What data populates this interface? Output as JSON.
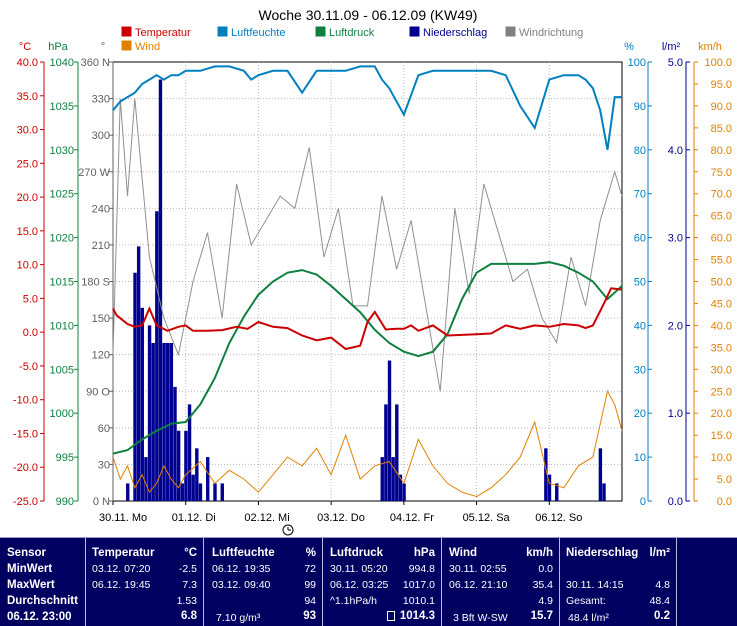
{
  "chart_data": {
    "type": "line",
    "title": "Woche 30.11.09 - 06.12.09 (KW49)",
    "legend": [
      {
        "name": "Temperatur",
        "color": "#cc0000"
      },
      {
        "name": "Luftfeuchte",
        "color": "#0080c0"
      },
      {
        "name": "Luftdruck",
        "color": "#108040"
      },
      {
        "name": "Niederschlag",
        "color": "#000090"
      },
      {
        "name": "Windrichtung",
        "color": "#808080"
      },
      {
        "name": "Wind",
        "color": "#e08000"
      }
    ],
    "x_tick_labels": [
      "30.11.  Mo",
      "01.12.  Di",
      "02.12.  Mi",
      "03.12.  Do",
      "04.12.  Fr",
      "05.12.  Sa",
      "06.12.  So"
    ],
    "axes": {
      "temp": {
        "unit": "°C",
        "color": "#cc0000",
        "ylim": [
          -25,
          40
        ],
        "ticks": [
          "40.0",
          "35.0",
          "30.0",
          "25.0",
          "20.0",
          "15.0",
          "10.0",
          "5.0",
          "0.0",
          "-5.0",
          "-10.0",
          "-15.0",
          "-20.0",
          "-25.0"
        ]
      },
      "pressure": {
        "unit": "hPa",
        "color": "#108040",
        "ylim": [
          990,
          1040
        ],
        "ticks": [
          "1040",
          "1035",
          "1030",
          "1025",
          "1020",
          "1015",
          "1010",
          "1005",
          "1000",
          "995",
          "990"
        ]
      },
      "winddir": {
        "unit": "°",
        "color": "#606060",
        "ylim": [
          0,
          360
        ],
        "ticks": [
          "360 N",
          "330",
          "300",
          "270 W",
          "240",
          "210",
          "180 S",
          "150",
          "120",
          "90 O",
          "60",
          "30",
          "0 N"
        ]
      },
      "humidity": {
        "unit": "%",
        "color": "#0080c0",
        "ylim": [
          0,
          100
        ],
        "ticks": [
          "100",
          "90",
          "80",
          "70",
          "60",
          "50",
          "40",
          "30",
          "20",
          "10",
          "0"
        ]
      },
      "rain": {
        "unit": "l/m²",
        "color": "#000090",
        "ylim": [
          0,
          5
        ],
        "ticks": [
          "5.0",
          "4.0",
          "3.0",
          "2.0",
          "1.0",
          "0.0"
        ]
      },
      "wind": {
        "unit": "km/h",
        "color": "#e08000",
        "ylim": [
          0,
          100
        ],
        "ticks": [
          "100.0",
          "95.0",
          "90.0",
          "85.0",
          "80.0",
          "75.0",
          "70.0",
          "65.0",
          "60.0",
          "55.0",
          "50.0",
          "45.0",
          "40.0",
          "35.0",
          "30.0",
          "25.0",
          "20.0",
          "15.0",
          "10.0",
          "5.0",
          "0.0"
        ]
      }
    },
    "series": [
      {
        "name": "Temperatur",
        "x": [
          0,
          0.05,
          0.2,
          0.3,
          0.4,
          0.5,
          0.6,
          0.75,
          0.9,
          1.0,
          1.1,
          1.3,
          1.5,
          1.7,
          1.85,
          2.0,
          2.2,
          2.4,
          2.6,
          2.8,
          3.0,
          3.2,
          3.4,
          3.5,
          3.6,
          3.75,
          3.9,
          4.0,
          4.1,
          4.2,
          4.4,
          4.6,
          4.8,
          5.0,
          5.2,
          5.4,
          5.6,
          5.8,
          6.0,
          6.2,
          6.4,
          6.5,
          6.6,
          6.75,
          6.85,
          7.0
        ],
        "y": [
          3.5,
          2.5,
          1.2,
          0.8,
          1.0,
          3.5,
          1.0,
          0.2,
          0.8,
          1.0,
          0.2,
          0.2,
          0.3,
          0.8,
          0.5,
          1.5,
          0.8,
          0.6,
          -0.5,
          -1.2,
          -0.8,
          -2.5,
          -2.0,
          1.5,
          3.0,
          0.4,
          0.5,
          0.5,
          1.0,
          0.2,
          1.0,
          -0.5,
          -0.4,
          -0.3,
          -0.2,
          1.0,
          0.5,
          1.0,
          0.8,
          1.2,
          1.0,
          0.6,
          1.0,
          4.2,
          6.5,
          6.3
        ]
      },
      {
        "name": "Luftfeuchte",
        "x": [
          0,
          0.1,
          0.2,
          0.3,
          0.4,
          0.5,
          0.6,
          0.7,
          0.8,
          0.9,
          1.0,
          1.2,
          1.4,
          1.6,
          1.8,
          1.9,
          2.0,
          2.2,
          2.4,
          2.6,
          2.8,
          3.0,
          3.2,
          3.4,
          3.6,
          3.7,
          3.8,
          4.0,
          4.2,
          4.4,
          4.6,
          4.8,
          5.0,
          5.2,
          5.4,
          5.6,
          5.8,
          6.0,
          6.2,
          6.4,
          6.5,
          6.6,
          6.7,
          6.8,
          6.9,
          7.0
        ],
        "y": [
          89,
          91,
          92,
          93,
          95,
          96,
          97,
          96,
          97,
          97,
          98,
          98,
          99,
          99,
          98,
          96,
          97,
          98,
          98,
          93,
          98,
          98,
          98,
          99,
          99,
          96,
          94,
          88,
          97,
          98,
          98,
          98,
          98,
          98,
          97,
          90,
          85,
          96,
          97,
          97,
          96,
          94,
          89,
          80,
          92,
          92
        ]
      },
      {
        "name": "Luftdruck",
        "x": [
          0,
          0.2,
          0.4,
          0.6,
          0.8,
          1.0,
          1.2,
          1.4,
          1.6,
          1.8,
          2.0,
          2.2,
          2.4,
          2.6,
          2.8,
          3.0,
          3.2,
          3.4,
          3.6,
          3.8,
          4.0,
          4.2,
          4.4,
          4.6,
          4.8,
          5.0,
          5.2,
          5.4,
          5.6,
          5.8,
          6.0,
          6.2,
          6.4,
          6.6,
          6.8,
          7.0
        ],
        "y": [
          995.4,
          995.8,
          997,
          998,
          998.8,
          999,
          1001,
          1004,
          1008,
          1011,
          1013.5,
          1015,
          1016,
          1016.3,
          1015.8,
          1014.5,
          1013,
          1011.5,
          1009.5,
          1008,
          1007,
          1006.5,
          1007,
          1009,
          1013,
          1016,
          1017,
          1017,
          1017,
          1017,
          1017.2,
          1016.8,
          1016,
          1015,
          1013,
          1014.5
        ]
      },
      {
        "name": "Windrichtung",
        "x": [
          0,
          0.1,
          0.2,
          0.3,
          0.5,
          0.7,
          0.9,
          1.1,
          1.3,
          1.5,
          1.7,
          1.9,
          2.1,
          2.3,
          2.5,
          2.7,
          2.9,
          3.1,
          3.3,
          3.5,
          3.7,
          3.9,
          4.1,
          4.3,
          4.5,
          4.7,
          4.9,
          5.1,
          5.3,
          5.5,
          5.7,
          5.9,
          6.1,
          6.3,
          6.5,
          6.7,
          6.9,
          7.0
        ],
        "y": [
          120,
          330,
          250,
          330,
          200,
          150,
          120,
          180,
          220,
          150,
          260,
          210,
          230,
          250,
          240,
          290,
          200,
          240,
          160,
          160,
          250,
          190,
          230,
          160,
          90,
          240,
          170,
          260,
          220,
          180,
          190,
          150,
          130,
          200,
          160,
          230,
          270,
          250
        ]
      },
      {
        "name": "Niederschlag",
        "x": [
          0.2,
          0.3,
          0.35,
          0.4,
          0.45,
          0.5,
          0.55,
          0.6,
          0.65,
          0.7,
          0.75,
          0.8,
          0.85,
          0.9,
          0.95,
          1.0,
          1.05,
          1.1,
          1.15,
          1.2,
          1.3,
          1.4,
          1.5,
          3.7,
          3.75,
          3.8,
          3.85,
          3.9,
          3.95,
          4.0,
          5.95,
          6.0,
          6.1,
          6.7,
          6.75
        ],
        "y": [
          0.2,
          2.6,
          2.9,
          2.2,
          0.5,
          2.0,
          1.8,
          3.3,
          4.8,
          1.8,
          1.8,
          1.8,
          1.3,
          0.8,
          0.2,
          0.8,
          1.1,
          0.3,
          0.6,
          0.2,
          0.5,
          0.2,
          0.2,
          0.5,
          1.1,
          1.6,
          0.5,
          1.1,
          0.3,
          0.2,
          0.6,
          0.3,
          0.2,
          0.6,
          0.2
        ]
      },
      {
        "name": "Wind",
        "x": [
          0,
          0.1,
          0.2,
          0.3,
          0.4,
          0.5,
          0.6,
          0.7,
          0.8,
          0.9,
          1.0,
          1.2,
          1.4,
          1.6,
          1.8,
          2.0,
          2.2,
          2.4,
          2.6,
          2.8,
          3.0,
          3.2,
          3.4,
          3.6,
          3.8,
          4.0,
          4.2,
          4.4,
          4.6,
          4.8,
          5.0,
          5.2,
          5.4,
          5.6,
          5.8,
          6.0,
          6.2,
          6.4,
          6.6,
          6.8,
          6.9,
          7.0
        ],
        "y": [
          10,
          5,
          8,
          3,
          6,
          2,
          4,
          8,
          5,
          3,
          6,
          9,
          4,
          7,
          5,
          2,
          6,
          10,
          8,
          12,
          6,
          15,
          5,
          8,
          9,
          4,
          14,
          8,
          4,
          2,
          1,
          3,
          6,
          10,
          18,
          4,
          3,
          8,
          10,
          25,
          22,
          16
        ]
      }
    ]
  },
  "table": {
    "headers": {
      "sensor": "Sensor",
      "temp": "Temperatur",
      "temp_unit": "°C",
      "hum": "Luftfeuchte",
      "hum_unit": "%",
      "press": "Luftdruck",
      "press_unit": "hPa",
      "wind": "Wind",
      "wind_unit": "km/h",
      "rain": "Niederschlag",
      "rain_unit": "l/m²"
    },
    "rows": {
      "min": "MinWert",
      "max": "MaxWert",
      "avg": "Durchschnitt",
      "now": "06.12. 23:00"
    },
    "temp": {
      "min_time": "03.12.  07:20",
      "min_val": "-2.5",
      "max_time": "06.12.  19:45",
      "max_val": "7.3",
      "avg": "1.53",
      "now": "6.8"
    },
    "hum": {
      "min_time": "06.12.  19:35",
      "min_val": "72",
      "max_time": "03.12.  09:40",
      "max_val": "99",
      "avg": "94",
      "abs": "7.10 g/m³",
      "now": "93"
    },
    "press": {
      "min_time": "30.11.  05:20",
      "min_val": "994.8",
      "max_time": "06.12.  03:25",
      "max_val": "1017.0",
      "trend": "^1.1hPa/h",
      "avg": "1010.1",
      "now": "1014.3"
    },
    "wind": {
      "min_time": "30.11.  02:55",
      "min_val": "0.0",
      "max_time": "06.12.  21:10",
      "max_val": "35.4",
      "avg": "4.9",
      "dir": "3 Bft W-SW",
      "now": "15.7"
    },
    "rain": {
      "max_time": "30.11.  14:15",
      "max_val": "4.8",
      "total_label": "Gesamt:",
      "total": "48.4",
      "now_label": "48.4 l/m²",
      "now": "0.2"
    }
  }
}
